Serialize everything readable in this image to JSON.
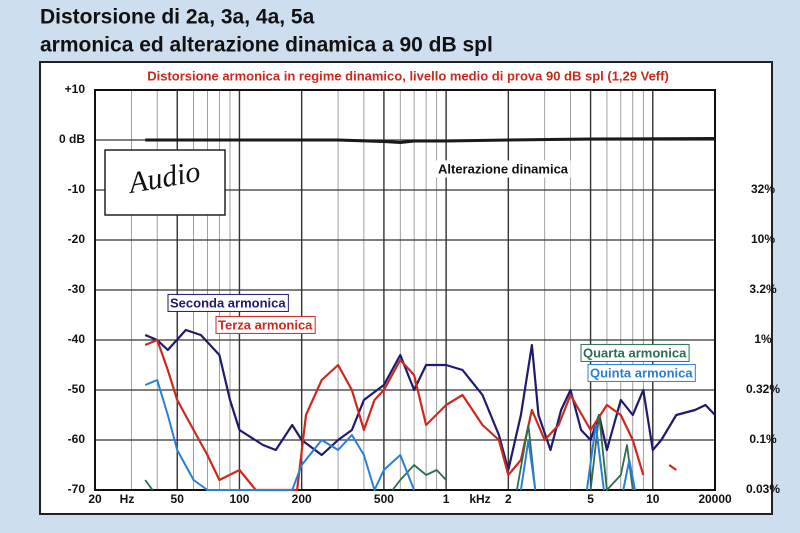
{
  "chart_data": {
    "type": "line",
    "title": "Distorsione di 2a, 3a, 4a, 5a",
    "title_line2": "armonica ed alterazione dinamica a 90 dB spl",
    "subtitle": "Distorsione armonica in regime dinamico, livello medio di prova 90 dB spl (1,29 Veff)",
    "logo": "Audio",
    "x_unit_labels": [
      "Hz",
      "kHz"
    ],
    "xlog": true,
    "xlim": [
      20,
      20000
    ],
    "xticks": [
      20,
      50,
      100,
      200,
      500,
      {
        "value": 1000,
        "label": "1"
      },
      {
        "value": 2000,
        "label": "2"
      },
      {
        "value": 5000,
        "label": "5"
      },
      {
        "value": 10000,
        "label": "10"
      },
      20000
    ],
    "ylim": [
      -70,
      10
    ],
    "yticks": [
      {
        "value": 10,
        "label": "+10"
      },
      {
        "value": 0,
        "label": "0 dB"
      },
      -10,
      -20,
      -30,
      -40,
      -50,
      -60,
      -70
    ],
    "y2log": true,
    "y2lim": [
      0.0316,
      316
    ],
    "y2ticks": [
      {
        "value": 31.6,
        "label": "32%"
      },
      {
        "value": 10,
        "label": "10%"
      },
      {
        "value": 3.16,
        "label": "3.2%"
      },
      {
        "value": 1,
        "label": "1%"
      },
      {
        "value": 0.316,
        "label": "0.32%"
      },
      {
        "value": 0.1,
        "label": "0.1%"
      },
      {
        "value": 0.0316,
        "label": "0.03%"
      }
    ],
    "grid": true,
    "series": [
      {
        "name": "Alterazione dinamica",
        "color": "#1a1a1a",
        "x": [
          35,
          100,
          300,
          500,
          600,
          700,
          1000,
          2000,
          5000,
          20000
        ],
        "values": [
          0,
          0,
          0,
          -0.3,
          -0.5,
          -0.2,
          -0.2,
          0,
          0.2,
          0.3
        ]
      },
      {
        "name": "Seconda armonica",
        "color": "#1e1a6e",
        "x": [
          35,
          40,
          45,
          55,
          65,
          80,
          90,
          100,
          130,
          150,
          180,
          200,
          250,
          300,
          350,
          400,
          500,
          600,
          700,
          800,
          1000,
          1200,
          1500,
          1800,
          2000,
          2300,
          2600,
          2800,
          3200,
          3600,
          4000,
          4500,
          5000,
          5500,
          6000,
          7000,
          8000,
          9000,
          10000,
          11000,
          13000,
          16000,
          18000,
          20000
        ],
        "values": [
          -39,
          -40,
          -42,
          -38,
          -39,
          -43,
          -52,
          -58,
          -61,
          -62,
          -57,
          -60,
          -63,
          -60,
          -58,
          -52,
          -49,
          -43,
          -50,
          -45,
          -45,
          -46,
          -51,
          -59,
          -66,
          -55,
          -41,
          -55,
          -62,
          -54,
          -50,
          -58,
          -60,
          -55,
          -62,
          -52,
          -55,
          -50,
          -62,
          -60,
          -55,
          -54,
          -53,
          -55
        ]
      },
      {
        "name": "Terza armonica",
        "color": "#cc2a1f",
        "x": [
          35,
          40,
          45,
          50,
          60,
          70,
          80,
          100,
          120,
          150,
          190,
          210,
          250,
          300,
          350,
          400,
          450,
          500,
          600,
          700,
          800,
          1000,
          1200,
          1500,
          1800,
          2000,
          2300,
          2600,
          3000,
          3500,
          4000,
          5000,
          6000,
          7000,
          8000,
          9000,
          null,
          12000,
          13000
        ],
        "values": [
          -41,
          -40,
          -46,
          -52,
          -58,
          -63,
          -68,
          -66,
          -70,
          -70,
          -70,
          -55,
          -48,
          -45,
          -50,
          -58,
          -52,
          -50,
          -44,
          -47,
          -57,
          -53,
          -51,
          -57,
          -60,
          -67,
          -64,
          -54,
          -60,
          -57,
          -51,
          -58,
          -53,
          -55,
          -60,
          -67,
          null,
          -65,
          -66
        ]
      },
      {
        "name": "Quarta armonica",
        "color": "#2e6e4e",
        "x": [
          35,
          38,
          null,
          550,
          600,
          700,
          800,
          900,
          1000,
          null,
          2200,
          2500,
          2700,
          null,
          5000,
          5500,
          6000,
          7000,
          7500,
          8000
        ],
        "values": [
          -68,
          -70,
          null,
          -70,
          -68,
          -65,
          -67,
          -66,
          -68,
          null,
          -70,
          -57,
          -70,
          null,
          -70,
          -55,
          -70,
          -67,
          -61,
          -70
        ]
      },
      {
        "name": "Quinta armonica",
        "color": "#2a7fd6",
        "x": [
          35,
          40,
          45,
          50,
          60,
          70,
          100,
          180,
          200,
          250,
          300,
          350,
          400,
          450,
          500,
          600,
          700,
          null,
          2300,
          2500,
          2700,
          null,
          4800,
          5300,
          5800,
          null,
          7200,
          7700,
          8200
        ],
        "values": [
          -49,
          -48,
          -55,
          -62,
          -68,
          -70,
          -70,
          -70,
          -65,
          -60,
          -62,
          -59,
          -63,
          -70,
          -66,
          -63,
          -70,
          null,
          -70,
          -60,
          -70,
          null,
          -70,
          -57,
          -70,
          null,
          -70,
          -64,
          -70
        ]
      }
    ]
  }
}
